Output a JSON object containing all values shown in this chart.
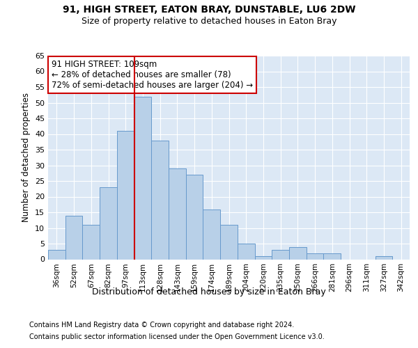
{
  "title1": "91, HIGH STREET, EATON BRAY, DUNSTABLE, LU6 2DW",
  "title2": "Size of property relative to detached houses in Eaton Bray",
  "xlabel": "Distribution of detached houses by size in Eaton Bray",
  "ylabel": "Number of detached properties",
  "categories": [
    "36sqm",
    "52sqm",
    "67sqm",
    "82sqm",
    "97sqm",
    "113sqm",
    "128sqm",
    "143sqm",
    "159sqm",
    "174sqm",
    "189sqm",
    "204sqm",
    "220sqm",
    "235sqm",
    "250sqm",
    "266sqm",
    "281sqm",
    "296sqm",
    "311sqm",
    "327sqm",
    "342sqm"
  ],
  "values": [
    3,
    14,
    11,
    23,
    41,
    52,
    38,
    29,
    27,
    16,
    11,
    5,
    1,
    3,
    4,
    2,
    2,
    0,
    0,
    1,
    0
  ],
  "bar_color": "#b8d0e8",
  "bar_edge_color": "#6699cc",
  "background_color": "#dce8f5",
  "grid_color": "#ffffff",
  "vline_color": "#cc0000",
  "annotation_text": "91 HIGH STREET: 109sqm\n← 28% of detached houses are smaller (78)\n72% of semi-detached houses are larger (204) →",
  "annotation_box_color": "#ffffff",
  "annotation_box_edge": "#cc0000",
  "footer1": "Contains HM Land Registry data © Crown copyright and database right 2024.",
  "footer2": "Contains public sector information licensed under the Open Government Licence v3.0.",
  "ylim": [
    0,
    65
  ],
  "yticks": [
    0,
    5,
    10,
    15,
    20,
    25,
    30,
    35,
    40,
    45,
    50,
    55,
    60,
    65
  ]
}
